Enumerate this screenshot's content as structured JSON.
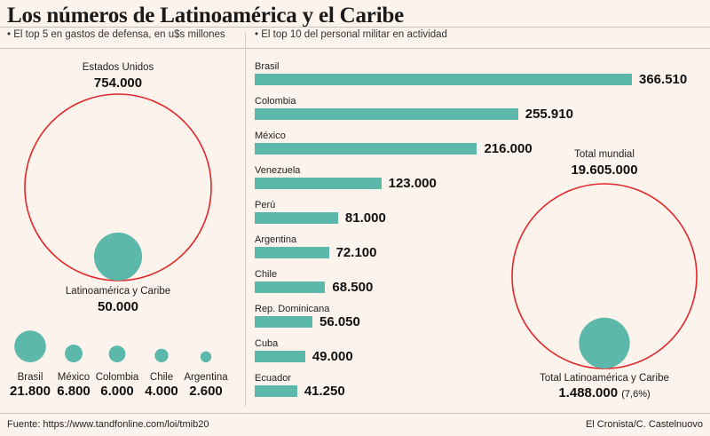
{
  "title": "Los números de Latinoamérica y el Caribe",
  "left_panel": {
    "subtitle": "• El top 5 en gastos de defensa, en u$s millones",
    "world_label": "Estados Unidos",
    "world_value": "754.000",
    "region_label": "Latinoamérica y Caribe",
    "region_value": "50.000"
  },
  "right_panel": {
    "subtitle": "• El top 10 del personal militar en actividad",
    "total_label": "Total mundial",
    "total_value": "19.605.000",
    "region_label": "Total Latinoamérica y Caribe",
    "region_value": "1.488.000",
    "region_pct": "(7,6%)"
  },
  "colors": {
    "teal": "#5bb8aa",
    "red_circle": "#e0282a",
    "background": "#fbf3ec"
  },
  "footer": {
    "source": "Fuente: https://www.tandfonline.com/loi/tmib20",
    "credit": "El Cronista/C. Castelnuovo"
  },
  "chart_data": [
    {
      "type": "bubble",
      "title": "El top 5 en gastos de defensa, en u$s millones",
      "comparison": [
        {
          "label": "Estados Unidos",
          "value": 754000,
          "display": "754.000"
        },
        {
          "label": "Latinoamérica y Caribe",
          "value": 50000,
          "display": "50.000"
        }
      ],
      "categories": [
        "Brasil",
        "México",
        "Colombia",
        "Chile",
        "Argentina"
      ],
      "values": [
        21800,
        6800,
        6000,
        4000,
        2600
      ],
      "display_values": [
        "21.800",
        "6.800",
        "6.000",
        "4.000",
        "2.600"
      ]
    },
    {
      "type": "bar",
      "orientation": "horizontal",
      "title": "El top 10 del personal militar en actividad",
      "categories": [
        "Brasil",
        "Colombia",
        "México",
        "Venezuela",
        "Perú",
        "Argentina",
        "Chile",
        "Rep. Dominicana",
        "Cuba",
        "Ecuador"
      ],
      "values": [
        366510,
        255910,
        216000,
        123000,
        81000,
        72100,
        68500,
        56050,
        49000,
        41250
      ],
      "display_values": [
        "366.510",
        "255.910",
        "216.000",
        "123.000",
        "81.000",
        "72.100",
        "68.500",
        "56.050",
        "49.000",
        "41.250"
      ]
    },
    {
      "type": "bubble",
      "comparison": [
        {
          "label": "Total mundial",
          "value": 19605000,
          "display": "19.605.000"
        },
        {
          "label": "Total Latinoamérica y Caribe",
          "value": 1488000,
          "display": "1.488.000",
          "share": "7,6%"
        }
      ]
    }
  ]
}
